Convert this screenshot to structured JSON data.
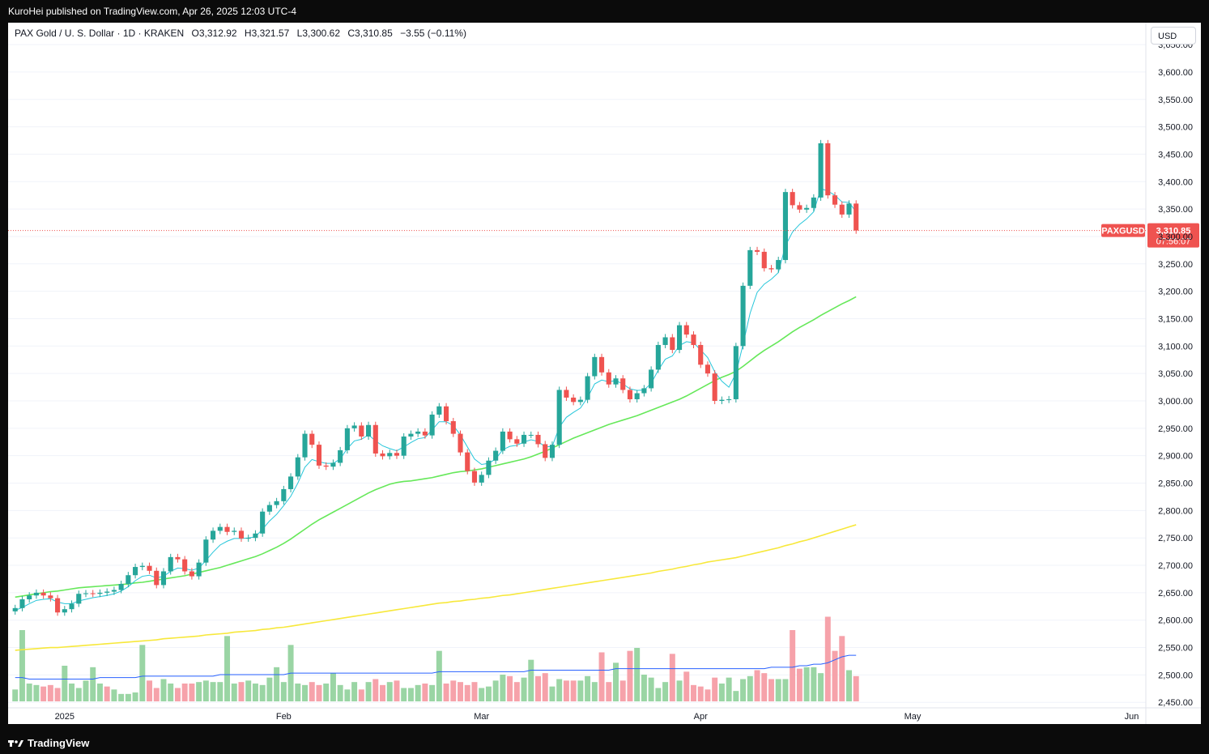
{
  "header": {
    "published": "KuroHei published on TradingView.com, Apr 26, 2025 12:03 UTC-4"
  },
  "legend": {
    "symbol": "PAX Gold / U. S. Dollar · 1D · KRAKEN",
    "open": "O3,312.92",
    "high": "H3,321.57",
    "low": "L3,300.62",
    "close": "C3,310.85",
    "change": "−3.55 (−0.11%)"
  },
  "currency_label": "USD",
  "price_tag": {
    "symbol": "PAXGUSD",
    "price": "3,310.85",
    "countdown": "07:56:07"
  },
  "footer": {
    "brand": "TradingView",
    "logo_icon": "tradingview-logo-icon"
  },
  "colors": {
    "up": "#26a69a",
    "down": "#ef5350",
    "ema_fast": "#26c6da",
    "sma_mid": "#66e85a",
    "sma_slow": "#f7e83b",
    "vol_ma": "#2962ff",
    "price_line": "#ef5350"
  },
  "chart_data": {
    "type": "candlestick",
    "y_ticks": [
      "3,650.00",
      "3,600.00",
      "3,550.00",
      "3,500.00",
      "3,450.00",
      "3,400.00",
      "3,350.00",
      "3,300.00",
      "3,250.00",
      "3,200.00",
      "3,150.00",
      "3,100.00",
      "3,050.00",
      "3,000.00",
      "2,950.00",
      "2,900.00",
      "2,850.00",
      "2,800.00",
      "2,750.00",
      "2,700.00",
      "2,650.00",
      "2,600.00",
      "2,550.00",
      "2,500.00",
      "2,450.00"
    ],
    "x_labels": [
      {
        "label": "2025",
        "index": 7
      },
      {
        "label": "Feb",
        "index": 38
      },
      {
        "label": "Mar",
        "index": 66
      },
      {
        "label": "Apr",
        "index": 97
      },
      {
        "label": "May",
        "index": 127
      },
      {
        "label": "Jun",
        "index": 158
      }
    ],
    "y_range": [
      2440,
      3690
    ],
    "x_range": [
      -1,
      160
    ],
    "last_price": 3310.85,
    "closes": [
      2622,
      2638,
      2645,
      2650,
      2645,
      2640,
      2614,
      2620,
      2630,
      2648,
      2649,
      2648,
      2650,
      2652,
      2655,
      2666,
      2682,
      2697,
      2699,
      2690,
      2664,
      2689,
      2715,
      2711,
      2689,
      2680,
      2705,
      2747,
      2763,
      2770,
      2761,
      2763,
      2749,
      2750,
      2758,
      2798,
      2810,
      2817,
      2839,
      2862,
      2897,
      2940,
      2920,
      2882,
      2880,
      2887,
      2910,
      2950,
      2955,
      2935,
      2956,
      2904,
      2899,
      2905,
      2900,
      2935,
      2940,
      2944,
      2937,
      2975,
      2990,
      2963,
      2940,
      2906,
      2872,
      2851,
      2865,
      2891,
      2909,
      2944,
      2930,
      2922,
      2938,
      2938,
      2921,
      2896,
      2920,
      3020,
      3006,
      2998,
      3002,
      3045,
      3080,
      3052,
      3030,
      3041,
      3020,
      3003,
      3014,
      3023,
      3057,
      3102,
      3116,
      3093,
      3138,
      3121,
      3102,
      3066,
      3050,
      3000,
      3002,
      3003,
      3100,
      3210,
      3275,
      3272,
      3242,
      3240,
      3257,
      3381,
      3357,
      3349,
      3352,
      3371,
      3470,
      3375,
      3358,
      3340,
      3360,
      3310.85
    ],
    "ema_fast": [
      2618,
      2623,
      2630,
      2636,
      2638,
      2639,
      2633,
      2630,
      2630,
      2635,
      2638,
      2641,
      2643,
      2645,
      2648,
      2653,
      2661,
      2672,
      2680,
      2682,
      2677,
      2680,
      2689,
      2695,
      2694,
      2691,
      2695,
      2709,
      2724,
      2737,
      2744,
      2749,
      2749,
      2750,
      2752,
      2766,
      2781,
      2793,
      2809,
      2826,
      2850,
      2879,
      2893,
      2889,
      2886,
      2886,
      2894,
      2913,
      2927,
      2930,
      2938,
      2927,
      2918,
      2913,
      2909,
      2916,
      2924,
      2931,
      2933,
      2947,
      2962,
      2962,
      2955,
      2938,
      2916,
      2894,
      2884,
      2886,
      2894,
      2911,
      2917,
      2919,
      2925,
      2929,
      2926,
      2916,
      2917,
      2952,
      2970,
      2979,
      2987,
      3006,
      3031,
      3038,
      3035,
      3037,
      3031,
      3022,
      3019,
      3020,
      3032,
      3056,
      3076,
      3082,
      3101,
      3108,
      3106,
      3093,
      3079,
      3053,
      3036,
      3025,
      3050,
      3103,
      3160,
      3198,
      3213,
      3222,
      3234,
      3283,
      3308,
      3322,
      3332,
      3345,
      3387,
      3383,
      3375,
      3363,
      3362,
      3345
    ],
    "sma_50": [
      2642,
      2644,
      2646,
      2648,
      2650,
      2652,
      2653,
      2655,
      2657,
      2659,
      2660,
      2661,
      2662,
      2663,
      2664,
      2665,
      2666,
      2668,
      2669,
      2671,
      2673,
      2675,
      2677,
      2679,
      2681,
      2684,
      2687,
      2690,
      2693,
      2696,
      2700,
      2704,
      2708,
      2712,
      2716,
      2721,
      2727,
      2733,
      2740,
      2748,
      2757,
      2766,
      2775,
      2783,
      2790,
      2797,
      2804,
      2811,
      2818,
      2825,
      2832,
      2838,
      2843,
      2848,
      2851,
      2853,
      2854,
      2856,
      2858,
      2860,
      2863,
      2866,
      2869,
      2871,
      2872,
      2874,
      2876,
      2879,
      2882,
      2885,
      2888,
      2891,
      2894,
      2898,
      2903,
      2908,
      2914,
      2920,
      2926,
      2932,
      2937,
      2942,
      2947,
      2952,
      2957,
      2961,
      2965,
      2969,
      2973,
      2978,
      2983,
      2988,
      2993,
      2998,
      3003,
      3009,
      3016,
      3023,
      3030,
      3037,
      3043,
      3048,
      3054,
      3063,
      3073,
      3083,
      3092,
      3100,
      3108,
      3117,
      3126,
      3134,
      3141,
      3148,
      3156,
      3163,
      3170,
      3177,
      3183,
      3190
    ],
    "sma_200": [
      2545,
      2546,
      2547,
      2548,
      2549,
      2550,
      2550,
      2551,
      2552,
      2553,
      2554,
      2555,
      2556,
      2557,
      2558,
      2559,
      2560,
      2561,
      2562,
      2563,
      2564,
      2566,
      2567,
      2568,
      2569,
      2570,
      2571,
      2573,
      2574,
      2575,
      2576,
      2578,
      2579,
      2580,
      2581,
      2583,
      2584,
      2586,
      2587,
      2589,
      2591,
      2593,
      2595,
      2597,
      2599,
      2601,
      2603,
      2605,
      2607,
      2609,
      2611,
      2613,
      2615,
      2617,
      2619,
      2621,
      2623,
      2625,
      2627,
      2629,
      2631,
      2632,
      2634,
      2635,
      2637,
      2638,
      2640,
      2641,
      2643,
      2645,
      2646,
      2648,
      2650,
      2652,
      2654,
      2656,
      2658,
      2660,
      2662,
      2664,
      2666,
      2668,
      2670,
      2672,
      2674,
      2676,
      2678,
      2680,
      2682,
      2684,
      2686,
      2689,
      2691,
      2693,
      2696,
      2698,
      2701,
      2703,
      2706,
      2708,
      2710,
      2712,
      2714,
      2717,
      2720,
      2723,
      2726,
      2729,
      2732,
      2736,
      2739,
      2743,
      2746,
      2750,
      2754,
      2758,
      2762,
      2766,
      2770,
      2774
    ],
    "volume": [
      8,
      48,
      12,
      11,
      10,
      11,
      9,
      24,
      12,
      9,
      14,
      23,
      12,
      10,
      8,
      5,
      5,
      6,
      38,
      14,
      9,
      15,
      12,
      9,
      12,
      12,
      13,
      14,
      13,
      13,
      44,
      12,
      13,
      14,
      12,
      11,
      16,
      23,
      13,
      38,
      12,
      11,
      13,
      11,
      12,
      19,
      11,
      8,
      13,
      8,
      13,
      15,
      11,
      13,
      14,
      9,
      9,
      11,
      12,
      11,
      34,
      12,
      14,
      13,
      11,
      13,
      9,
      10,
      14,
      18,
      17,
      13,
      16,
      28,
      17,
      19,
      10,
      15,
      14,
      14,
      14,
      17,
      13,
      33,
      13,
      26,
      14,
      34,
      36,
      18,
      16,
      9,
      13,
      32,
      14,
      20,
      11,
      10,
      8,
      16,
      12,
      16,
      7,
      15,
      17,
      21,
      19,
      15,
      15,
      15,
      48,
      22,
      23,
      23,
      19,
      57,
      34,
      44,
      21,
      17
    ],
    "volume_up": [
      true,
      true,
      true,
      true,
      false,
      false,
      false,
      true,
      true,
      true,
      true,
      true,
      true,
      false,
      true,
      true,
      true,
      true,
      true,
      false,
      false,
      true,
      true,
      false,
      false,
      false,
      true,
      true,
      true,
      true,
      true,
      true,
      false,
      true,
      true,
      true,
      true,
      true,
      true,
      true,
      true,
      true,
      false,
      false,
      true,
      true,
      true,
      true,
      true,
      false,
      true,
      false,
      false,
      true,
      false,
      true,
      true,
      true,
      false,
      true,
      true,
      false,
      false,
      false,
      false,
      false,
      true,
      true,
      true,
      true,
      false,
      false,
      true,
      true,
      false,
      false,
      true,
      true,
      false,
      false,
      true,
      true,
      true,
      false,
      false,
      true,
      false,
      false,
      true,
      true,
      true,
      true,
      true,
      false,
      true,
      false,
      false,
      false,
      false,
      false,
      true,
      true,
      true,
      true,
      true,
      false,
      false,
      false,
      true,
      true,
      false,
      false,
      true,
      true,
      true,
      false,
      false,
      false,
      true,
      false
    ],
    "volume_ma": [
      16,
      16,
      15,
      15,
      15,
      15,
      15,
      15,
      15,
      15,
      15,
      15,
      16,
      16,
      16,
      16,
      16,
      16,
      17,
      17,
      17,
      17,
      17,
      17,
      17,
      17,
      17,
      17,
      17,
      18,
      18,
      18,
      18,
      18,
      18,
      18,
      18,
      18,
      18,
      19,
      19,
      19,
      19,
      19,
      19,
      19,
      19,
      19,
      19,
      19,
      19,
      19,
      19,
      19,
      19,
      19,
      19,
      19,
      19,
      19,
      20,
      20,
      20,
      20,
      20,
      20,
      20,
      20,
      20,
      20,
      20,
      20,
      20,
      21,
      21,
      21,
      21,
      21,
      21,
      21,
      21,
      21,
      21,
      21,
      21,
      22,
      22,
      22,
      22,
      22,
      22,
      22,
      22,
      22,
      22,
      22,
      22,
      22,
      22,
      22,
      22,
      22,
      22,
      22,
      22,
      22,
      22,
      23,
      23,
      23,
      23,
      24,
      24,
      25,
      25,
      26,
      28,
      30,
      31,
      31
    ]
  }
}
